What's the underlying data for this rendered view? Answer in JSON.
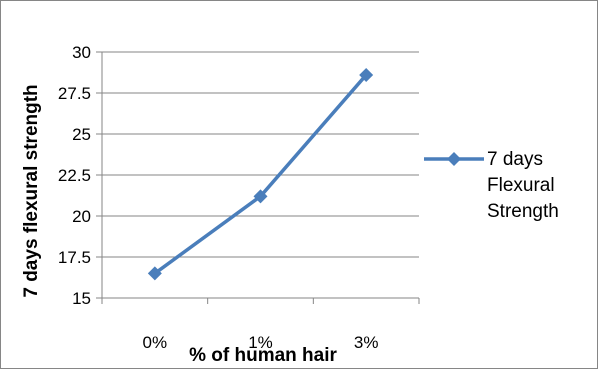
{
  "chart_data": {
    "type": "line",
    "title": "",
    "xlabel": "% of human hair",
    "ylabel": "7 days flexural strength",
    "categories": [
      "0%",
      "1%",
      "3%"
    ],
    "series": [
      {
        "name": "7 days Flexural Strength",
        "values": [
          16.5,
          21.2,
          28.6
        ],
        "color": "#4a7ebb",
        "marker": "diamond"
      }
    ],
    "ylim": [
      15,
      30
    ],
    "yticks": [
      15,
      17.5,
      20,
      22.5,
      25,
      27.5,
      30
    ],
    "ytick_labels": [
      "15",
      "17.5",
      "20",
      "22.5",
      "25",
      "27.5",
      "30"
    ],
    "grid": true,
    "legend_position": "right",
    "legend_label_lines": [
      "7 days",
      "Flexural",
      "Strength"
    ]
  },
  "colors": {
    "series": "#4a7ebb",
    "grid": "#868686",
    "frame": "#868686"
  }
}
